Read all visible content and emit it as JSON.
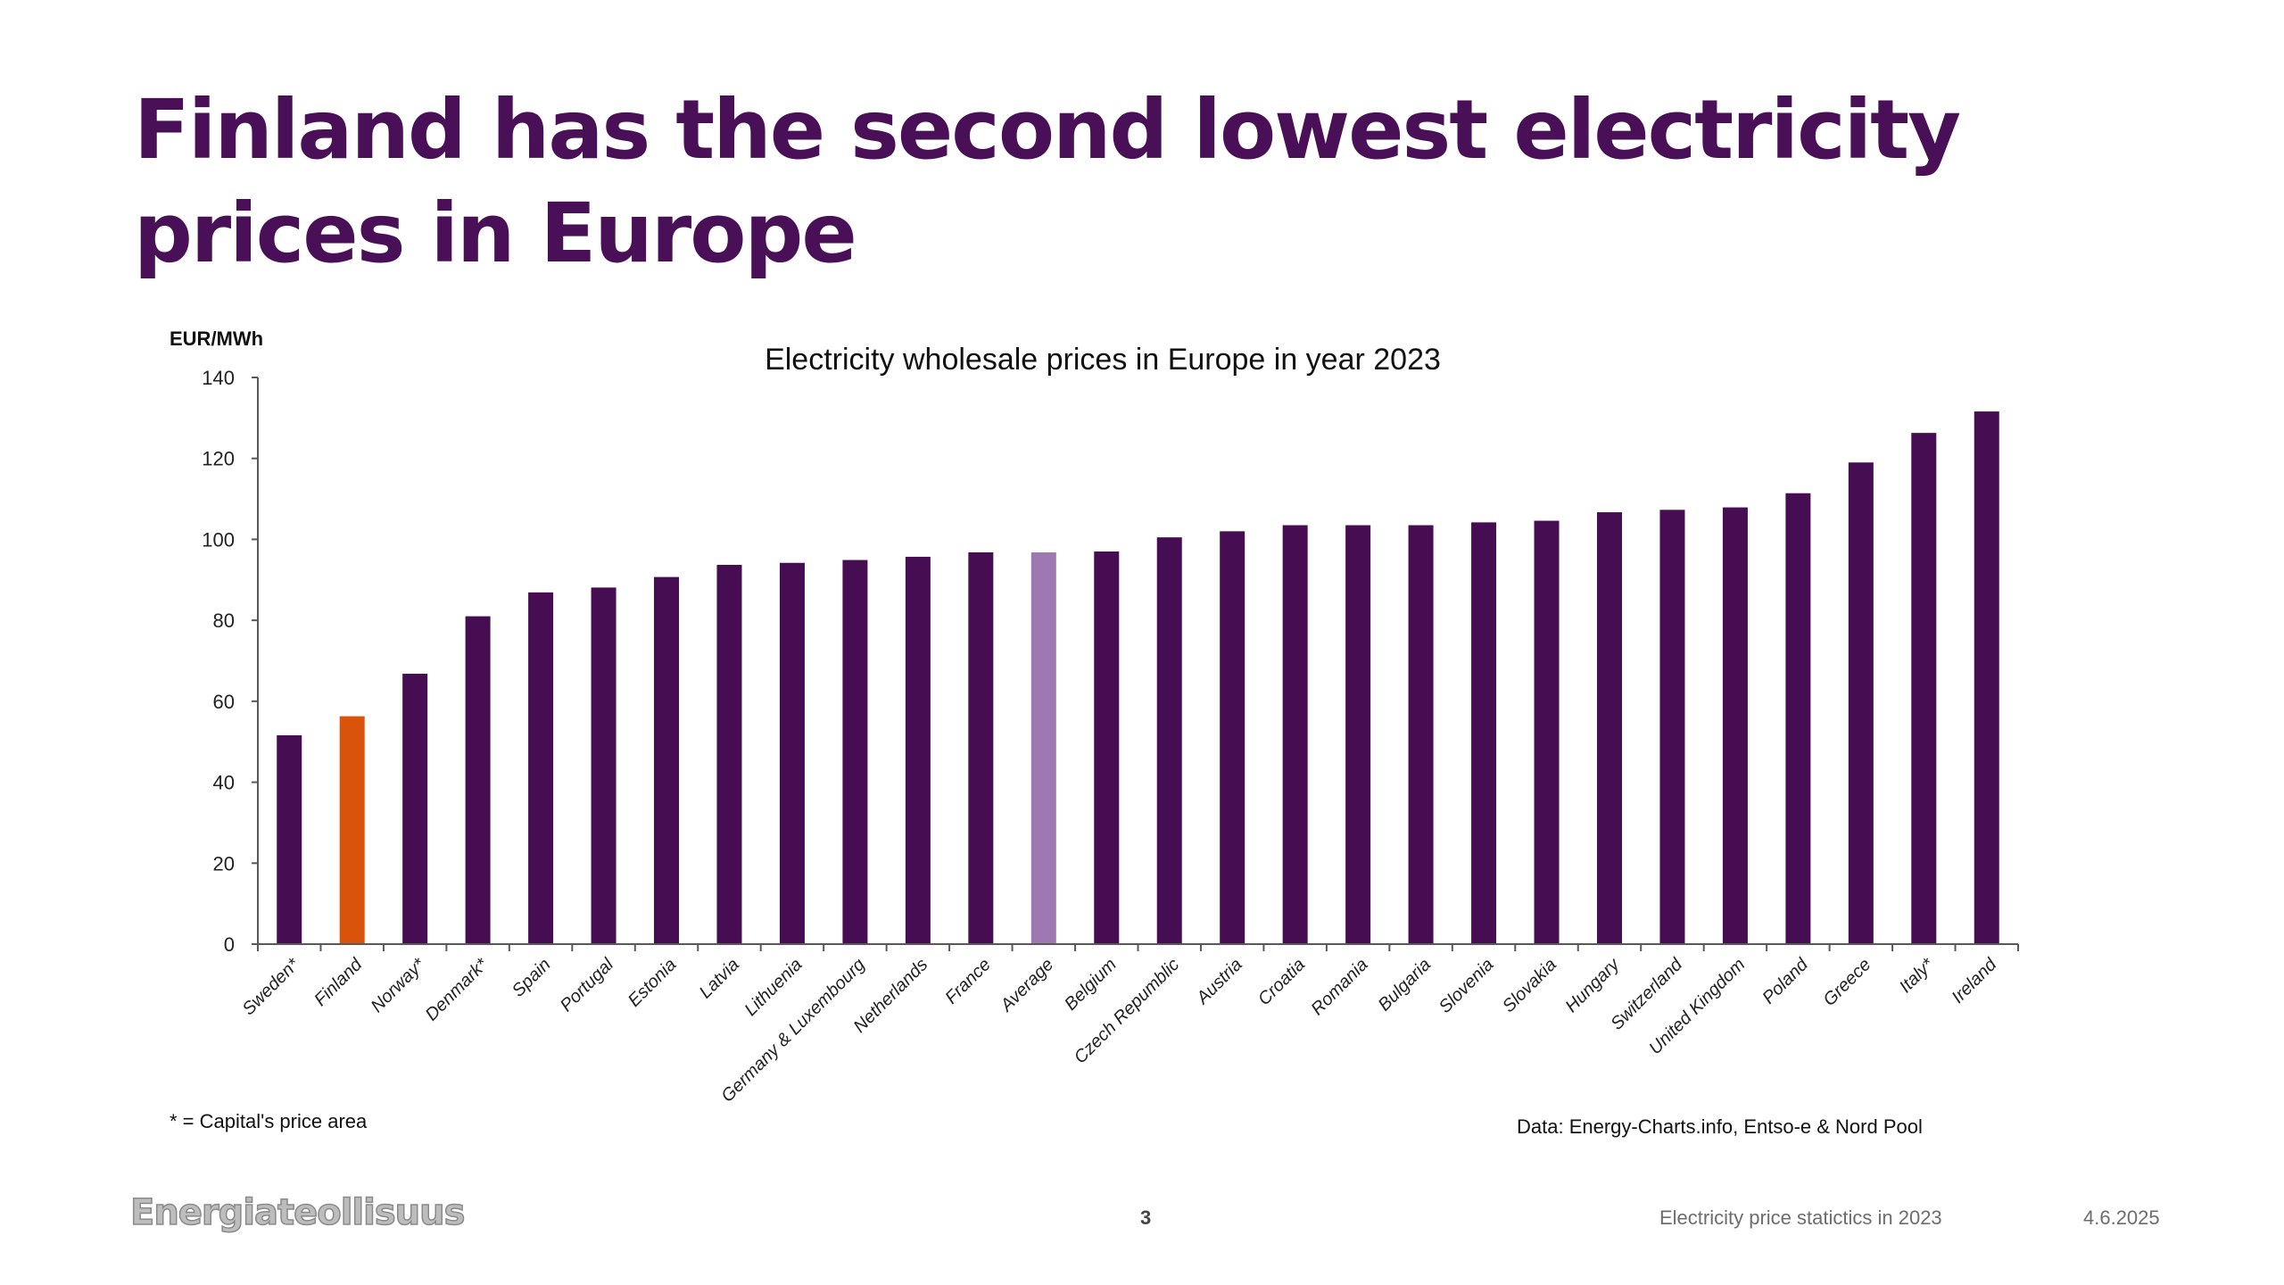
{
  "slide": {
    "title": "Finland has the second lowest electricity\nprices in Europe",
    "footnote": "* = Capital's price area",
    "source": "Data: Energy-Charts.info, Entso-e & Nord Pool"
  },
  "footer": {
    "logo": "Energiateollisuus",
    "page_number": "3",
    "caption": "Electricity price statictics in 2023",
    "date": "4.6.2025"
  },
  "colors": {
    "bar": "#470d52",
    "highlight": "#d9540a",
    "average": "#9e78b0",
    "title": "#4a1057",
    "axis": "#595959"
  },
  "chart_data": {
    "type": "bar",
    "title": "Electricity wholesale prices in Europe in year 2023",
    "xlabel": "",
    "ylabel": "EUR/MWh",
    "ylim": [
      0,
      140
    ],
    "yticks": [
      0,
      20,
      40,
      60,
      80,
      100,
      120,
      140
    ],
    "grid": false,
    "legend": "none",
    "categories": [
      "Sweden*",
      "Finland",
      "Norway*",
      "Denmark*",
      "Spain",
      "Portugal",
      "Estonia",
      "Latvia",
      "Lithuenia",
      "Germany & Luxembourg",
      "Netherlands",
      "France",
      "Average",
      "Belgium",
      "Czech Repumblic",
      "Austria",
      "Croatia",
      "Romania",
      "Bulgaria",
      "Slovenia",
      "Slovakia",
      "Hungary",
      "Switzerland",
      "United Kingdom",
      "Poland",
      "Greece",
      "Italy*",
      "Ireland"
    ],
    "values": [
      51.6,
      56.3,
      66.8,
      81.0,
      86.9,
      88.1,
      90.7,
      93.7,
      94.2,
      94.9,
      95.7,
      96.8,
      96.8,
      97.0,
      100.5,
      102.0,
      103.5,
      103.5,
      103.5,
      104.2,
      104.6,
      106.7,
      107.3,
      107.9,
      111.4,
      119.0,
      126.3,
      131.6
    ],
    "highlight": {
      "Finland": "highlight",
      "Average": "average"
    }
  }
}
